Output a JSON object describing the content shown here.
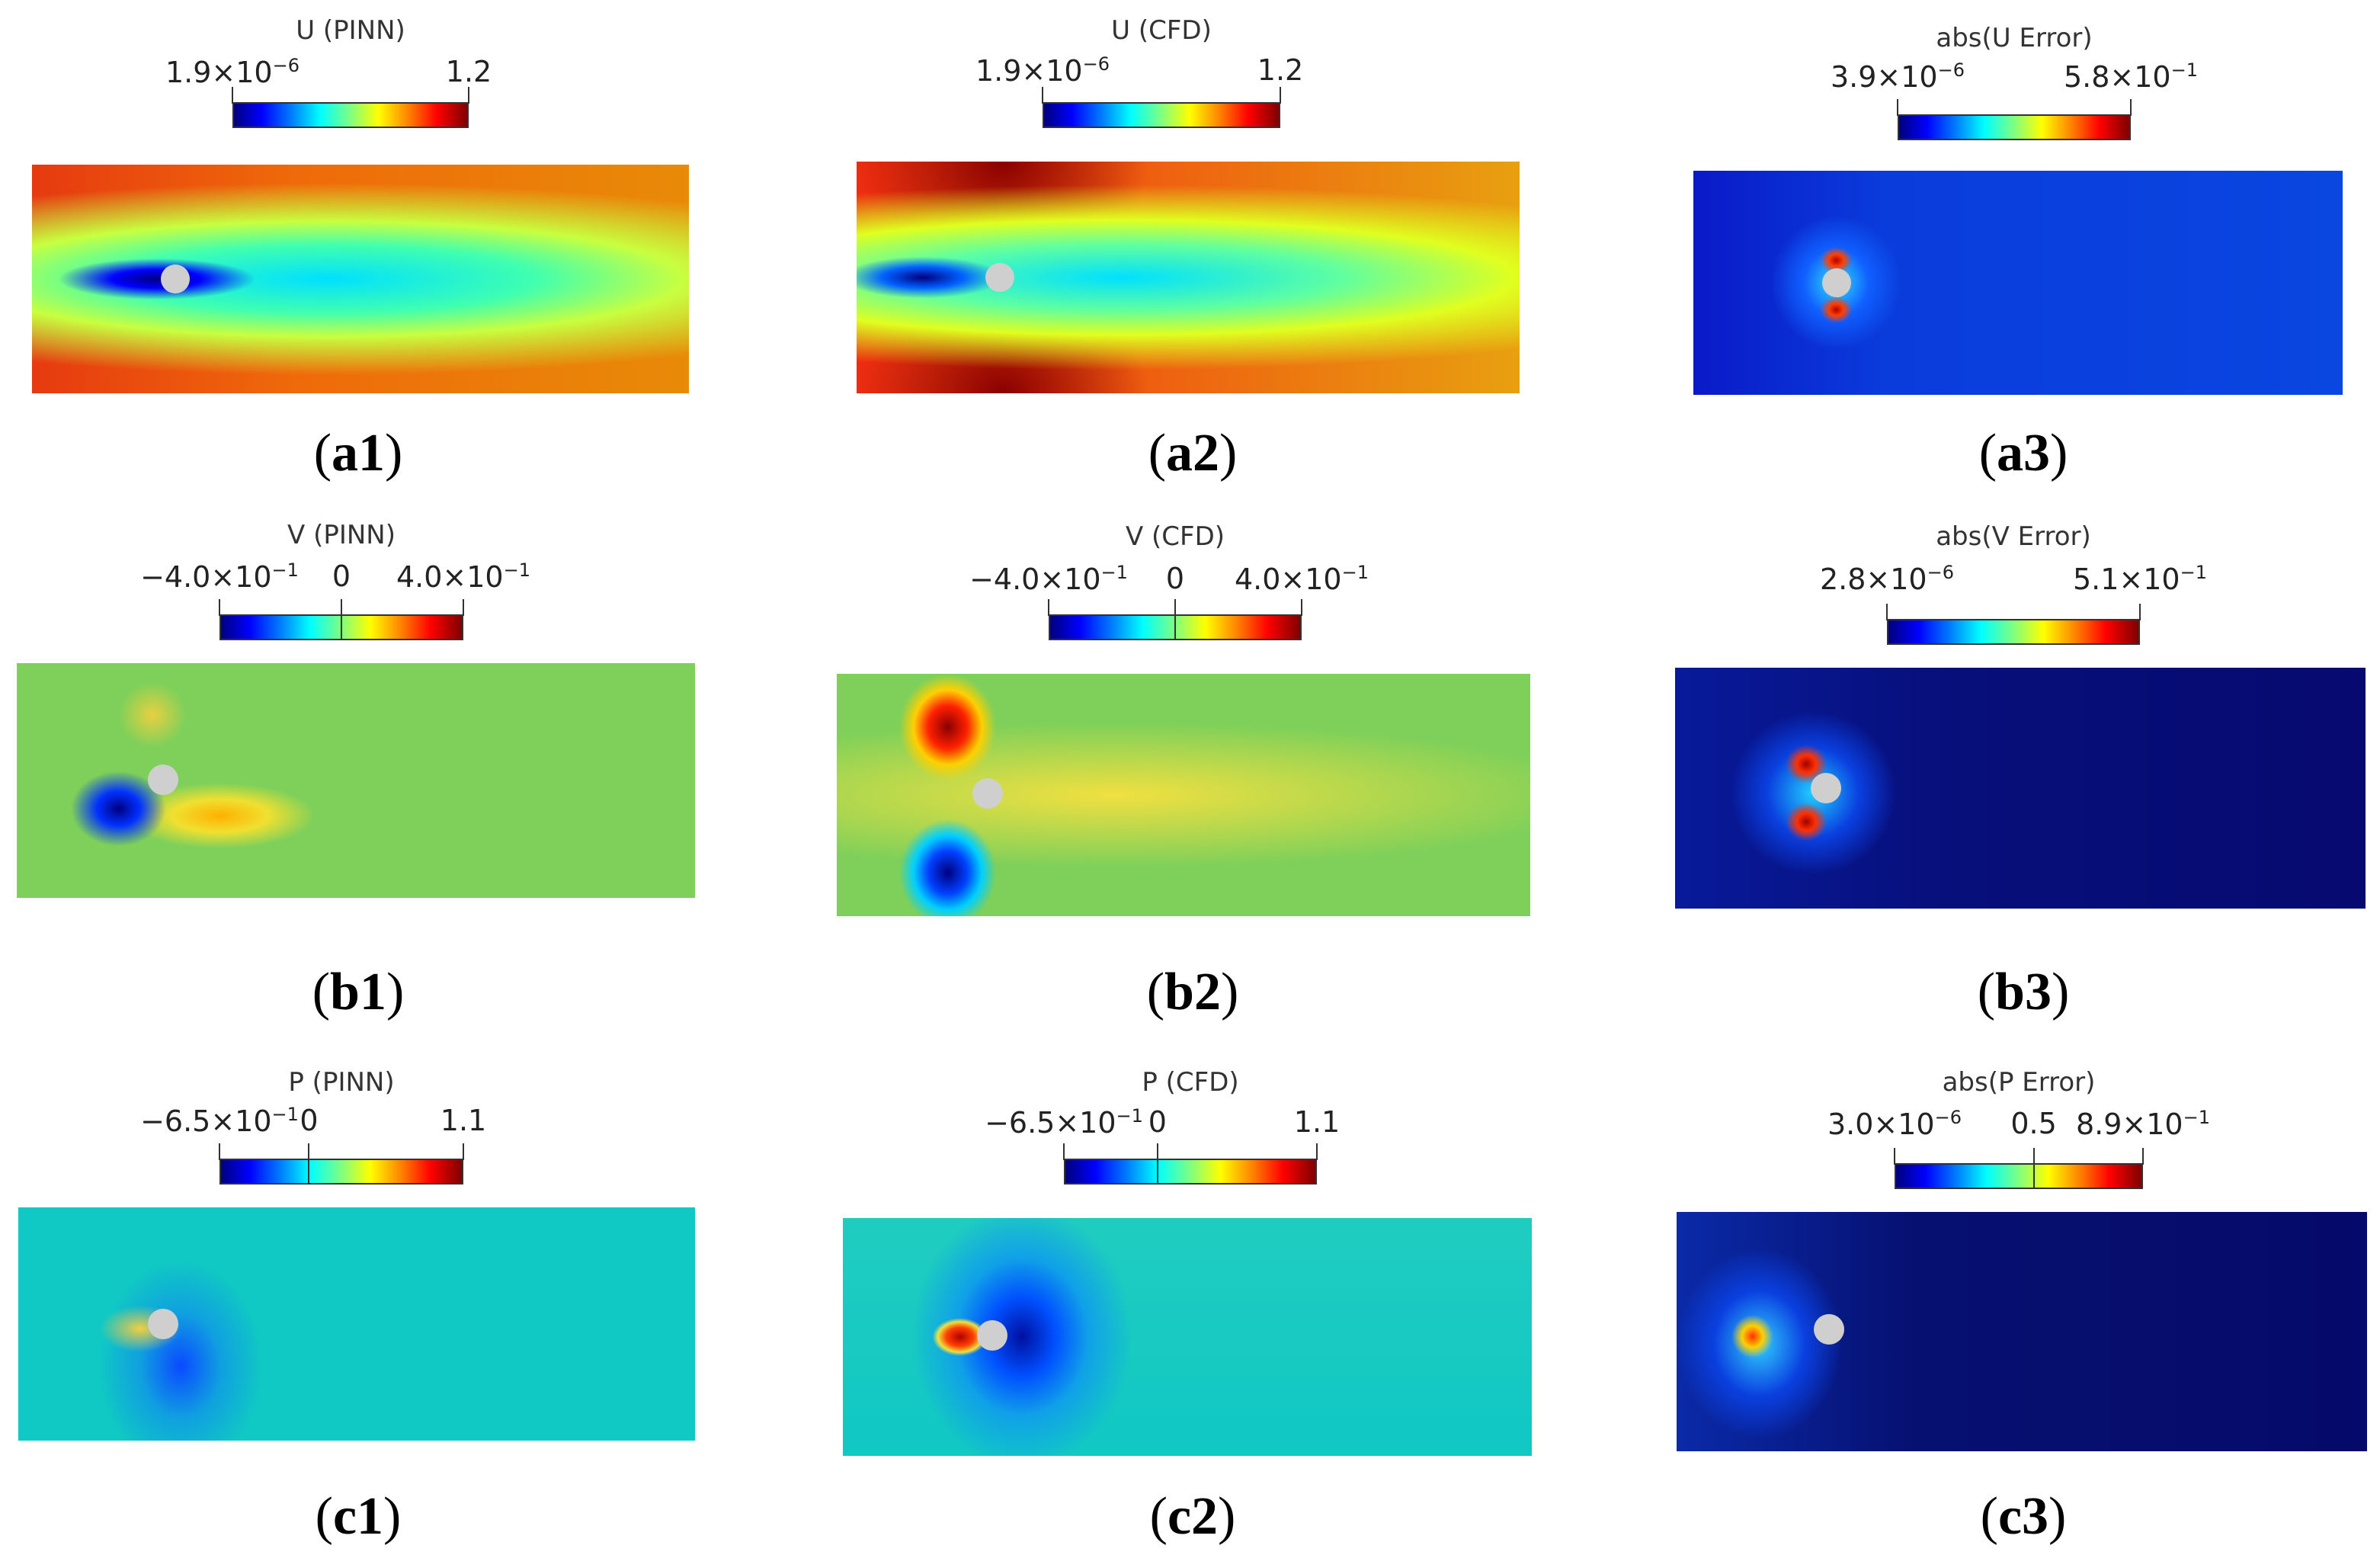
{
  "colors": {
    "jet": "linear-gradient(to right,#00007f 0%,#0000ff 12%,#0080ff 25%,#00ffff 37%,#80ff80 50%,#ffff00 62%,#ff8000 75%,#ff0000 87%,#7f0000 100%)",
    "background": "#ffffff"
  },
  "panels": [
    {
      "id": "a1",
      "label": "a1",
      "title": "U (PINN)",
      "ticks": [
        {
          "m": "1.9×10",
          "e": "−6"
        },
        {
          "m": "1.2",
          "e": ""
        }
      ],
      "mid_tick": null
    },
    {
      "id": "a2",
      "label": "a2",
      "title": "U (CFD)",
      "ticks": [
        {
          "m": "1.9×10",
          "e": "−6"
        },
        {
          "m": "1.2",
          "e": ""
        }
      ],
      "mid_tick": null
    },
    {
      "id": "a3",
      "label": "a3",
      "title": "abs(U Error)",
      "ticks": [
        {
          "m": "3.9×10",
          "e": "−6"
        },
        {
          "m": "5.8×10",
          "e": "−1"
        }
      ],
      "mid_tick": null
    },
    {
      "id": "b1",
      "label": "b1",
      "title": "V (PINN)",
      "ticks": [
        {
          "m": "−4.0×10",
          "e": "−1"
        },
        {
          "m": "4.0×10",
          "e": "−1"
        }
      ],
      "mid_tick": {
        "m": "0",
        "e": ""
      }
    },
    {
      "id": "b2",
      "label": "b2",
      "title": "V (CFD)",
      "ticks": [
        {
          "m": "−4.0×10",
          "e": "−1"
        },
        {
          "m": "4.0×10",
          "e": "−1"
        }
      ],
      "mid_tick": {
        "m": "0",
        "e": ""
      }
    },
    {
      "id": "b3",
      "label": "b3",
      "title": "abs(V Error)",
      "ticks": [
        {
          "m": "2.8×10",
          "e": "−6"
        },
        {
          "m": "5.1×10",
          "e": "−1"
        }
      ],
      "mid_tick": null
    },
    {
      "id": "c1",
      "label": "c1",
      "title": "P (PINN)",
      "ticks": [
        {
          "m": "−6.5×10",
          "e": "−1"
        },
        {
          "m": "1.1",
          "e": ""
        }
      ],
      "mid_tick": {
        "m": "0",
        "e": ""
      }
    },
    {
      "id": "c2",
      "label": "c2",
      "title": "P (CFD)",
      "ticks": [
        {
          "m": "−6.5×10",
          "e": "−1"
        },
        {
          "m": "1.1",
          "e": ""
        }
      ],
      "mid_tick": {
        "m": "0",
        "e": ""
      }
    },
    {
      "id": "c3",
      "label": "c3",
      "title": "abs(P Error)",
      "ticks": [
        {
          "m": "3.0×10",
          "e": "−6"
        },
        {
          "m": "8.9×10",
          "e": "−1"
        }
      ],
      "mid_tick": {
        "m": "0.5",
        "e": ""
      }
    }
  ]
}
